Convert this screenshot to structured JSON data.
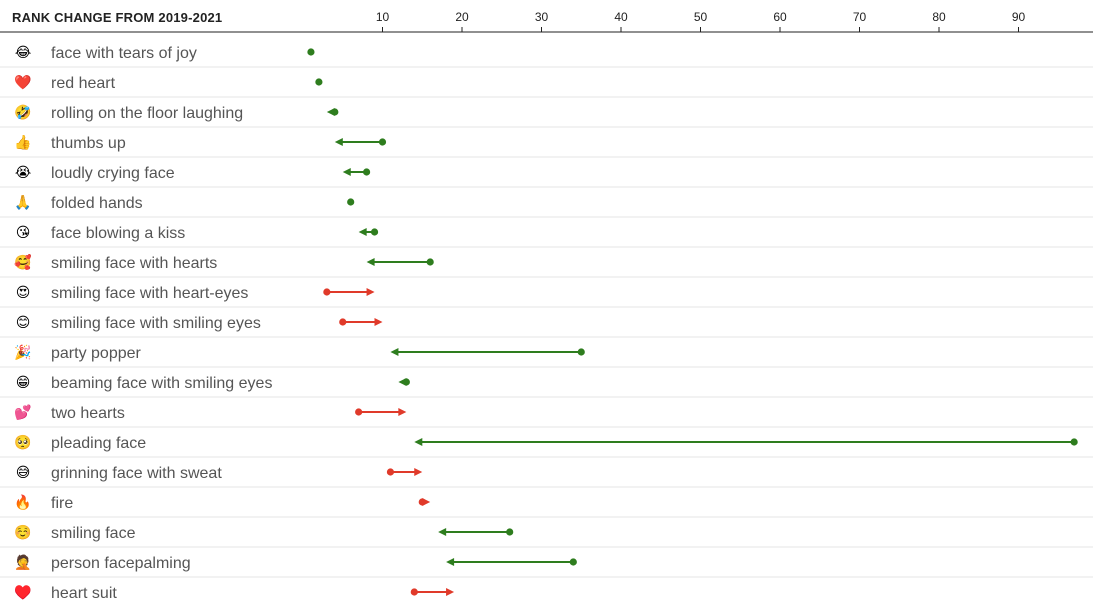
{
  "chart_data": {
    "type": "dot-arrow",
    "title": "RANK CHANGE FROM 2019-2021",
    "x_ticks": [
      10,
      20,
      30,
      40,
      50,
      60,
      70,
      80,
      90
    ],
    "xlim": [
      0,
      98
    ],
    "legend": "none",
    "colors": {
      "improved": "#2e7d1e",
      "declined": "#e03a2a"
    },
    "rows": [
      {
        "emoji": "😂",
        "label": "face with tears of joy",
        "rank_2019": 1,
        "rank_2021": 1
      },
      {
        "emoji": "❤️",
        "label": "red heart",
        "rank_2019": 2,
        "rank_2021": 2
      },
      {
        "emoji": "🤣",
        "label": "rolling on the floor laughing",
        "rank_2019": 4,
        "rank_2021": 3
      },
      {
        "emoji": "👍",
        "label": "thumbs up",
        "rank_2019": 10,
        "rank_2021": 4
      },
      {
        "emoji": "😭",
        "label": "loudly crying face",
        "rank_2019": 8,
        "rank_2021": 5
      },
      {
        "emoji": "🙏",
        "label": "folded hands",
        "rank_2019": 6,
        "rank_2021": 6
      },
      {
        "emoji": "😘",
        "label": "face blowing a kiss",
        "rank_2019": 9,
        "rank_2021": 7
      },
      {
        "emoji": "🥰",
        "label": "smiling face with hearts",
        "rank_2019": 16,
        "rank_2021": 8
      },
      {
        "emoji": "😍",
        "label": "smiling face with heart-eyes",
        "rank_2019": 3,
        "rank_2021": 9
      },
      {
        "emoji": "😊",
        "label": "smiling face with smiling eyes",
        "rank_2019": 5,
        "rank_2021": 10
      },
      {
        "emoji": "🎉",
        "label": "party popper",
        "rank_2019": 35,
        "rank_2021": 11
      },
      {
        "emoji": "😁",
        "label": "beaming face with smiling eyes",
        "rank_2019": 13,
        "rank_2021": 12
      },
      {
        "emoji": "💕",
        "label": "two hearts",
        "rank_2019": 7,
        "rank_2021": 13
      },
      {
        "emoji": "🥺",
        "label": "pleading face",
        "rank_2019": 97,
        "rank_2021": 14
      },
      {
        "emoji": "😅",
        "label": "grinning face with sweat",
        "rank_2019": 11,
        "rank_2021": 15
      },
      {
        "emoji": "🔥",
        "label": "fire",
        "rank_2019": 15,
        "rank_2021": 16
      },
      {
        "emoji": "☺️",
        "label": "smiling face",
        "rank_2019": 26,
        "rank_2021": 17
      },
      {
        "emoji": "🤦",
        "label": "person facepalming",
        "rank_2019": 34,
        "rank_2021": 18
      },
      {
        "emoji": "♥️",
        "label": "heart suit",
        "rank_2019": 14,
        "rank_2021": 19
      }
    ]
  }
}
